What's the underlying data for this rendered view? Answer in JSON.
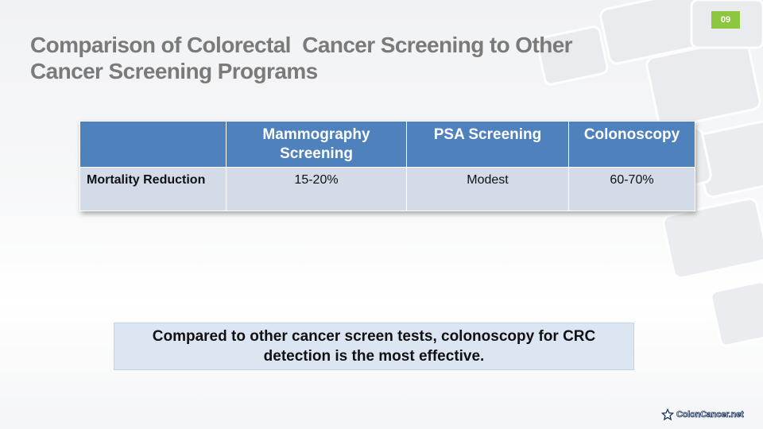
{
  "slide": {
    "page_number": "09",
    "title_lines": [
      "Comparison of Colorectal  Cancer Screening to Other",
      "Cancer Screening Programs"
    ]
  },
  "table": {
    "headers": [
      "",
      "Mammography Screening",
      "PSA Screening",
      "Colonoscopy"
    ],
    "rows": [
      {
        "label": "Mortality Reduction",
        "cells": [
          "15-20%",
          "Modest",
          "60-70%"
        ]
      }
    ]
  },
  "callout": {
    "text": "Compared to other cancer screen tests, colonoscopy for CRC detection is the most effective."
  },
  "logo": {
    "text": "ColonCancer.net",
    "icon": "star-logo-icon"
  },
  "colors": {
    "header_blue": "#4f81bd",
    "cell_light": "#d3dbe8",
    "callout_bg": "#dce6f2",
    "badge_green": "#8dc63f",
    "title_gray": "#7a7a7a"
  }
}
